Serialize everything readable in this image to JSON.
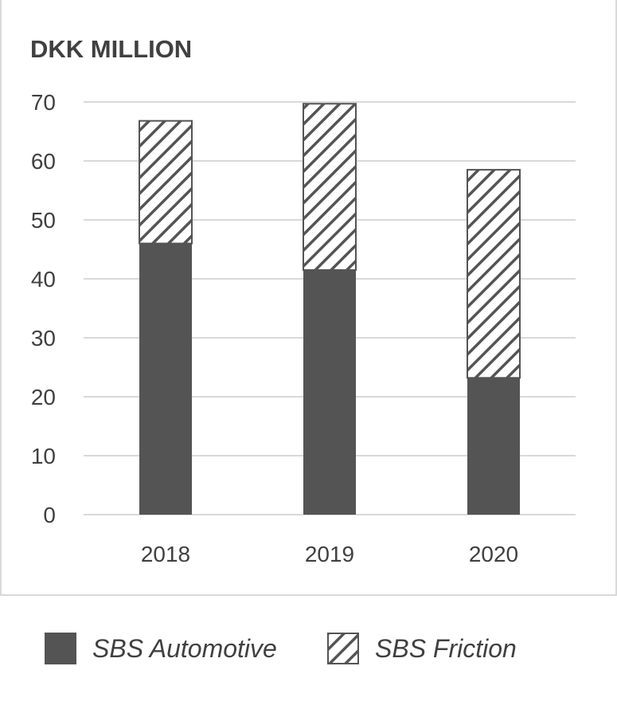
{
  "chart_data": {
    "type": "bar",
    "stacked": true,
    "title": "DKK MILLION",
    "categories": [
      "2018",
      "2019",
      "2020"
    ],
    "series": [
      {
        "name": "SBS Automotive",
        "values": [
          46,
          41.5,
          23.2
        ],
        "fill": "solid",
        "color": "#545454"
      },
      {
        "name": "SBS Friction",
        "values": [
          20.8,
          28.2,
          35.3
        ],
        "fill": "hatched",
        "color": "#545454"
      }
    ],
    "ylim": [
      0,
      70
    ],
    "yticks": [
      0,
      10,
      20,
      30,
      40,
      50,
      60,
      70
    ],
    "grid": true,
    "legend_position": "bottom"
  },
  "colors": {
    "bar": "#545454",
    "grid": "#d9d9d9",
    "text": "#404040"
  }
}
